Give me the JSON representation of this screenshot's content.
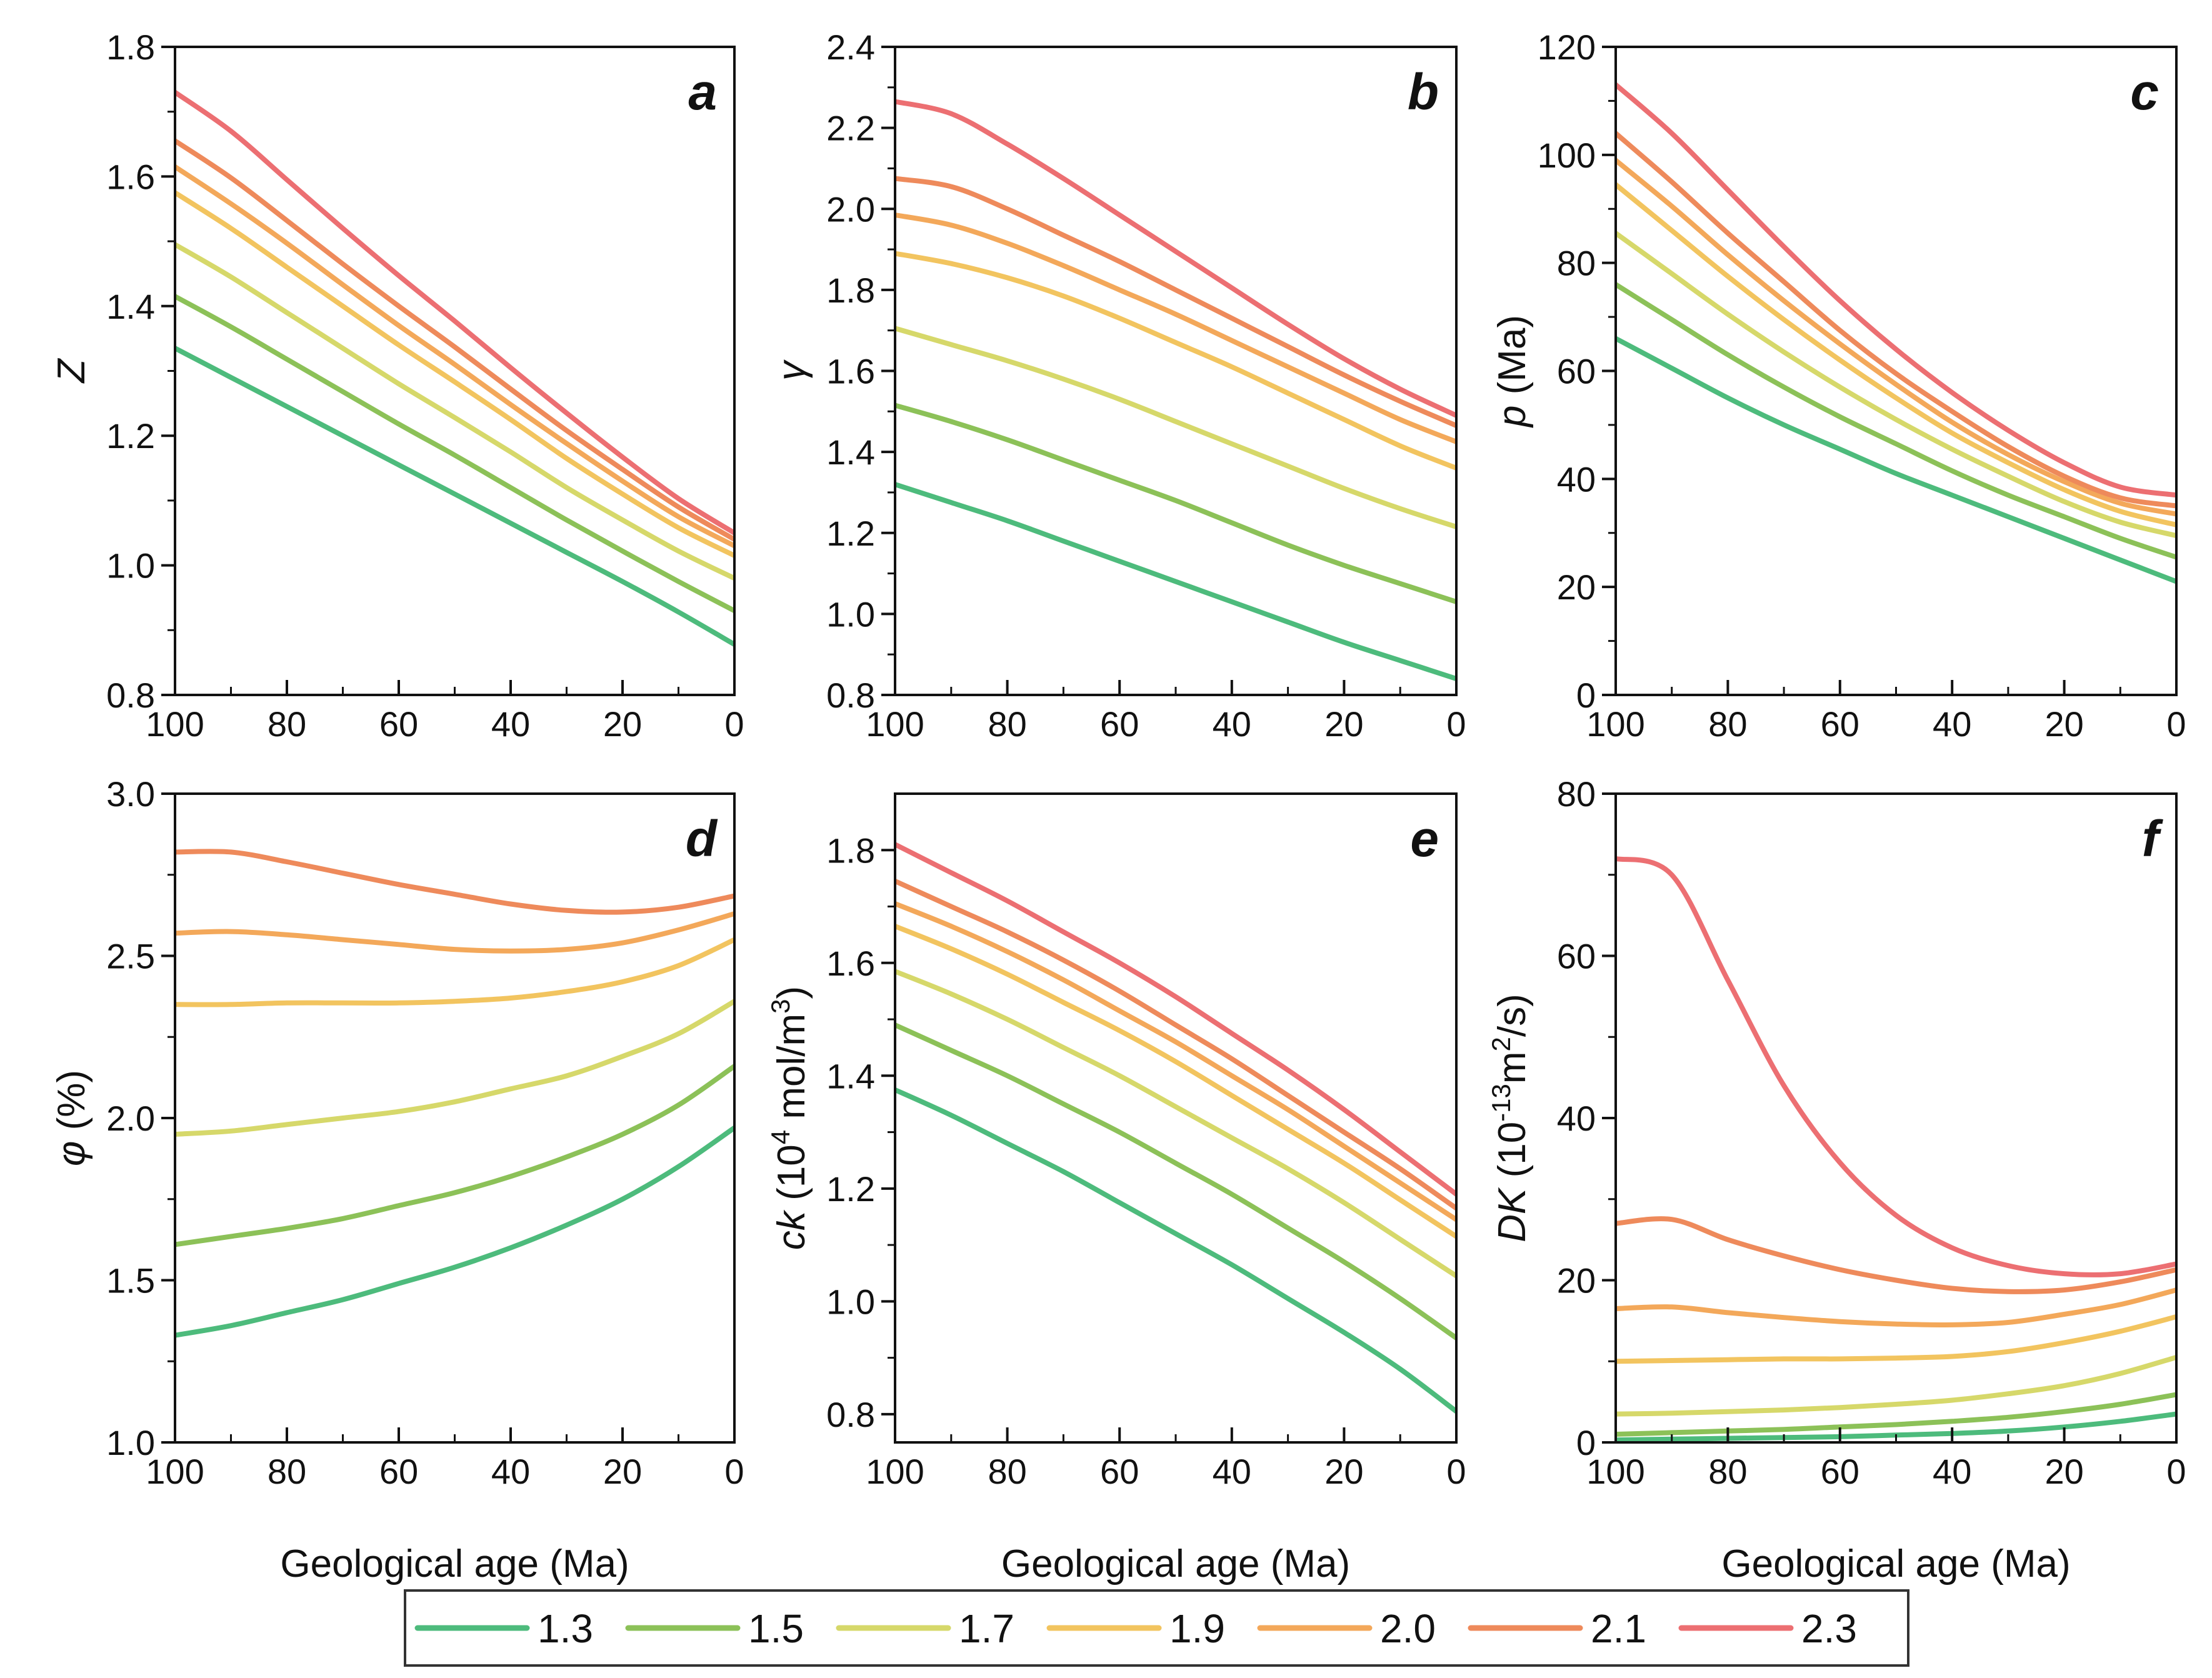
{
  "legend": {
    "entries": [
      {
        "label": "1.3",
        "color": "#4dbb7c"
      },
      {
        "label": "1.5",
        "color": "#8cc158"
      },
      {
        "label": "1.7",
        "color": "#d6d86a"
      },
      {
        "label": "1.9",
        "color": "#f2c45f"
      },
      {
        "label": "2.0",
        "color": "#f3a85a"
      },
      {
        "label": "2.1",
        "color": "#ee8a5b"
      },
      {
        "label": "2.3",
        "color": "#ec6f72"
      }
    ]
  },
  "chart_data": [
    {
      "panel": "a",
      "type": "line",
      "ylabel": "Z",
      "ylabel_italic": "Z",
      "ylabel_rest": "",
      "ylabel_sup": "",
      "ylabel_tail": "",
      "xlabel": "",
      "xlim": [
        100,
        0
      ],
      "ylim": [
        0.8,
        1.8
      ],
      "xticks": [
        "100",
        "80",
        "60",
        "40",
        "20",
        "0"
      ],
      "yticks": [
        "0.8",
        "1.0",
        "1.2",
        "1.4",
        "1.6",
        "1.8"
      ],
      "x": [
        100,
        90,
        80,
        70,
        60,
        50,
        40,
        30,
        20,
        10,
        0
      ],
      "series": [
        {
          "name": "1.3",
          "values": [
            1.335,
            1.29,
            1.245,
            1.2,
            1.155,
            1.11,
            1.065,
            1.02,
            0.975,
            0.928,
            0.878
          ]
        },
        {
          "name": "1.5",
          "values": [
            1.415,
            1.368,
            1.318,
            1.268,
            1.218,
            1.17,
            1.12,
            1.07,
            1.022,
            0.975,
            0.93
          ]
        },
        {
          "name": "1.7",
          "values": [
            1.495,
            1.445,
            1.39,
            1.335,
            1.28,
            1.228,
            1.175,
            1.12,
            1.07,
            1.022,
            0.98
          ]
        },
        {
          "name": "1.9",
          "values": [
            1.575,
            1.52,
            1.46,
            1.4,
            1.34,
            1.283,
            1.225,
            1.165,
            1.11,
            1.058,
            1.015
          ]
        },
        {
          "name": "2.0",
          "values": [
            1.615,
            1.558,
            1.497,
            1.433,
            1.37,
            1.31,
            1.248,
            1.188,
            1.13,
            1.075,
            1.03
          ]
        },
        {
          "name": "2.1",
          "values": [
            1.655,
            1.598,
            1.532,
            1.465,
            1.4,
            1.337,
            1.272,
            1.208,
            1.148,
            1.09,
            1.04
          ]
        },
        {
          "name": "2.3",
          "values": [
            1.73,
            1.67,
            1.595,
            1.52,
            1.447,
            1.377,
            1.305,
            1.235,
            1.167,
            1.103,
            1.05
          ]
        }
      ]
    },
    {
      "panel": "b",
      "type": "line",
      "ylabel": "γ",
      "ylabel_italic": "γ",
      "ylabel_rest": "",
      "ylabel_sup": "",
      "ylabel_tail": "",
      "xlabel": "",
      "xlim": [
        100,
        0
      ],
      "ylim": [
        0.8,
        2.4
      ],
      "xticks": [
        "100",
        "80",
        "60",
        "40",
        "20",
        "0"
      ],
      "yticks": [
        "0.8",
        "1.0",
        "1.2",
        "1.4",
        "1.6",
        "1.8",
        "2.0",
        "2.2",
        "2.4"
      ],
      "x": [
        100,
        90,
        80,
        70,
        60,
        50,
        40,
        30,
        20,
        10,
        0
      ],
      "series": [
        {
          "name": "1.3",
          "values": [
            1.32,
            1.275,
            1.23,
            1.18,
            1.13,
            1.08,
            1.03,
            0.98,
            0.93,
            0.885,
            0.84
          ]
        },
        {
          "name": "1.5",
          "values": [
            1.515,
            1.475,
            1.43,
            1.38,
            1.33,
            1.28,
            1.225,
            1.17,
            1.12,
            1.075,
            1.03
          ]
        },
        {
          "name": "1.7",
          "values": [
            1.705,
            1.665,
            1.625,
            1.58,
            1.53,
            1.475,
            1.42,
            1.365,
            1.31,
            1.26,
            1.215
          ]
        },
        {
          "name": "1.9",
          "values": [
            1.89,
            1.865,
            1.83,
            1.785,
            1.73,
            1.67,
            1.61,
            1.545,
            1.48,
            1.415,
            1.36
          ]
        },
        {
          "name": "2.0",
          "values": [
            1.985,
            1.96,
            1.915,
            1.86,
            1.8,
            1.74,
            1.675,
            1.61,
            1.545,
            1.48,
            1.425
          ]
        },
        {
          "name": "2.1",
          "values": [
            2.075,
            2.055,
            2.0,
            1.935,
            1.87,
            1.8,
            1.73,
            1.66,
            1.59,
            1.525,
            1.465
          ]
        },
        {
          "name": "2.3",
          "values": [
            2.265,
            2.235,
            2.16,
            2.075,
            1.985,
            1.895,
            1.805,
            1.715,
            1.63,
            1.555,
            1.49
          ]
        }
      ]
    },
    {
      "panel": "c",
      "type": "line",
      "ylabel": "p (Ma)",
      "ylabel_italic": "p",
      "ylabel_rest": " (Ma)",
      "ylabel_sup": "",
      "ylabel_tail": "",
      "xlabel": "",
      "xlim": [
        100,
        0
      ],
      "ylim": [
        0,
        120
      ],
      "xticks": [
        "100",
        "80",
        "60",
        "40",
        "20",
        "0"
      ],
      "yticks": [
        "0",
        "20",
        "40",
        "60",
        "80",
        "100",
        "120"
      ],
      "x": [
        100,
        90,
        80,
        70,
        60,
        50,
        40,
        30,
        20,
        10,
        0
      ],
      "series": [
        {
          "name": "1.3",
          "values": [
            66,
            60.5,
            55,
            50,
            45.5,
            41,
            37,
            33,
            29,
            25,
            21
          ]
        },
        {
          "name": "1.5",
          "values": [
            76,
            69.5,
            63,
            57,
            51.5,
            46.5,
            41.5,
            37,
            33,
            29,
            25.5
          ]
        },
        {
          "name": "1.7",
          "values": [
            85.5,
            78,
            70.5,
            63.5,
            57,
            51,
            45.5,
            40.5,
            35.8,
            32,
            29.5
          ]
        },
        {
          "name": "1.9",
          "values": [
            94.5,
            86,
            77.5,
            69.5,
            62,
            55,
            48.5,
            43,
            38,
            34,
            31.5
          ]
        },
        {
          "name": "2.0",
          "values": [
            99,
            90.5,
            81.5,
            73,
            65,
            57.5,
            50.5,
            44.5,
            39.5,
            35.5,
            33.5
          ]
        },
        {
          "name": "2.1",
          "values": [
            104,
            95,
            85.5,
            76.5,
            67.5,
            59.5,
            52.5,
            46,
            40.5,
            36.5,
            35
          ]
        },
        {
          "name": "2.3",
          "values": [
            113,
            104,
            93.5,
            83,
            73,
            64,
            56,
            49,
            43,
            38.5,
            37
          ]
        }
      ]
    },
    {
      "panel": "d",
      "type": "line",
      "ylabel": "φ (%)",
      "ylabel_italic": "φ",
      "ylabel_rest": " (%)",
      "ylabel_sup": "",
      "ylabel_tail": "",
      "xlabel": "Geological age (Ma)",
      "xlim": [
        100,
        0
      ],
      "ylim": [
        1.0,
        3.0
      ],
      "xticks": [
        "100",
        "80",
        "60",
        "40",
        "20",
        "0"
      ],
      "yticks": [
        "1.0",
        "1.5",
        "2.0",
        "2.5",
        "3.0"
      ],
      "x": [
        100,
        90,
        80,
        70,
        60,
        50,
        40,
        30,
        20,
        10,
        0
      ],
      "series": [
        {
          "name": "1.3",
          "values": [
            1.33,
            1.36,
            1.4,
            1.44,
            1.49,
            1.54,
            1.6,
            1.67,
            1.75,
            1.85,
            1.97
          ]
        },
        {
          "name": "1.5",
          "values": [
            1.61,
            1.635,
            1.66,
            1.69,
            1.73,
            1.77,
            1.82,
            1.88,
            1.95,
            2.04,
            2.16
          ]
        },
        {
          "name": "1.7",
          "values": [
            1.95,
            1.96,
            1.98,
            2.0,
            2.02,
            2.05,
            2.09,
            2.13,
            2.19,
            2.26,
            2.36
          ]
        },
        {
          "name": "1.9",
          "values": [
            2.35,
            2.35,
            2.355,
            2.355,
            2.355,
            2.36,
            2.37,
            2.39,
            2.42,
            2.47,
            2.55
          ]
        },
        {
          "name": "2.0",
          "values": [
            2.57,
            2.575,
            2.565,
            2.55,
            2.535,
            2.52,
            2.515,
            2.52,
            2.54,
            2.58,
            2.63
          ]
        },
        {
          "name": "2.1",
          "values": [
            2.82,
            2.82,
            2.79,
            2.755,
            2.72,
            2.69,
            2.66,
            2.64,
            2.635,
            2.65,
            2.685
          ]
        }
      ]
    },
    {
      "panel": "e",
      "type": "line",
      "ylabel": "ck (10^4 mol/m^3)",
      "ylabel_italic": "ck",
      "ylabel_rest": " (10",
      "ylabel_sup": "4",
      "ylabel_tail": " mol/m",
      "ylabel_sup2": "3",
      "ylabel_end": ")",
      "xlabel": "Geological age (Ma)",
      "xlim": [
        100,
        0
      ],
      "ylim": [
        0.75,
        1.9
      ],
      "xticks": [
        "100",
        "80",
        "60",
        "40",
        "20",
        "0"
      ],
      "yticks": [
        "0.8",
        "1.0",
        "1.2",
        "1.4",
        "1.6",
        "1.8"
      ],
      "x": [
        100,
        90,
        80,
        70,
        60,
        50,
        40,
        30,
        20,
        10,
        0
      ],
      "series": [
        {
          "name": "1.3",
          "values": [
            1.375,
            1.33,
            1.28,
            1.23,
            1.175,
            1.12,
            1.065,
            1.005,
            0.945,
            0.88,
            0.805
          ]
        },
        {
          "name": "1.5",
          "values": [
            1.49,
            1.445,
            1.4,
            1.35,
            1.3,
            1.245,
            1.19,
            1.13,
            1.07,
            1.005,
            0.935
          ]
        },
        {
          "name": "1.7",
          "values": [
            1.585,
            1.545,
            1.5,
            1.45,
            1.4,
            1.345,
            1.29,
            1.235,
            1.175,
            1.11,
            1.045
          ]
        },
        {
          "name": "1.9",
          "values": [
            1.665,
            1.625,
            1.58,
            1.53,
            1.48,
            1.425,
            1.365,
            1.305,
            1.245,
            1.18,
            1.115
          ]
        },
        {
          "name": "2.0",
          "values": [
            1.705,
            1.665,
            1.62,
            1.57,
            1.515,
            1.46,
            1.4,
            1.34,
            1.275,
            1.21,
            1.145
          ]
        },
        {
          "name": "2.1",
          "values": [
            1.745,
            1.7,
            1.655,
            1.605,
            1.55,
            1.49,
            1.43,
            1.365,
            1.3,
            1.235,
            1.165
          ]
        },
        {
          "name": "2.3",
          "values": [
            1.81,
            1.76,
            1.71,
            1.655,
            1.6,
            1.54,
            1.475,
            1.41,
            1.34,
            1.265,
            1.19
          ]
        }
      ]
    },
    {
      "panel": "f",
      "type": "line",
      "ylabel": "DK (10^-13 m^2/s)",
      "ylabel_italic": "DK",
      "ylabel_rest": " (10",
      "ylabel_sup": "-13",
      "ylabel_tail": "m",
      "ylabel_sup2": "2",
      "ylabel_end": "/s)",
      "xlabel": "Geological age (Ma)",
      "xlim": [
        100,
        0
      ],
      "ylim": [
        0,
        80
      ],
      "xticks": [
        "100",
        "80",
        "60",
        "40",
        "20",
        "0"
      ],
      "yticks": [
        "0",
        "20",
        "40",
        "60",
        "80"
      ],
      "x": [
        100,
        90,
        80,
        70,
        60,
        50,
        40,
        30,
        20,
        10,
        0
      ],
      "series": [
        {
          "name": "1.3",
          "values": [
            0.3,
            0.4,
            0.5,
            0.6,
            0.7,
            0.9,
            1.1,
            1.4,
            1.9,
            2.6,
            3.5
          ]
        },
        {
          "name": "1.5",
          "values": [
            1.0,
            1.2,
            1.4,
            1.6,
            1.9,
            2.2,
            2.6,
            3.1,
            3.8,
            4.7,
            5.9
          ]
        },
        {
          "name": "1.7",
          "values": [
            3.5,
            3.6,
            3.8,
            4.0,
            4.3,
            4.7,
            5.2,
            6.0,
            7.0,
            8.5,
            10.5
          ]
        },
        {
          "name": "1.9",
          "values": [
            10.0,
            10.1,
            10.2,
            10.3,
            10.3,
            10.4,
            10.6,
            11.2,
            12.3,
            13.7,
            15.5
          ]
        },
        {
          "name": "2.0",
          "values": [
            16.5,
            16.7,
            16.0,
            15.4,
            14.9,
            14.6,
            14.5,
            14.8,
            15.8,
            17.0,
            18.8
          ]
        },
        {
          "name": "2.1",
          "values": [
            27.0,
            27.5,
            25.0,
            23.0,
            21.3,
            20.0,
            19.0,
            18.6,
            18.8,
            19.8,
            21.3
          ]
        },
        {
          "name": "2.3",
          "values": [
            72.0,
            70.0,
            57.0,
            44.0,
            34.5,
            28.0,
            24.0,
            21.8,
            20.8,
            20.8,
            22.0
          ]
        }
      ]
    }
  ]
}
